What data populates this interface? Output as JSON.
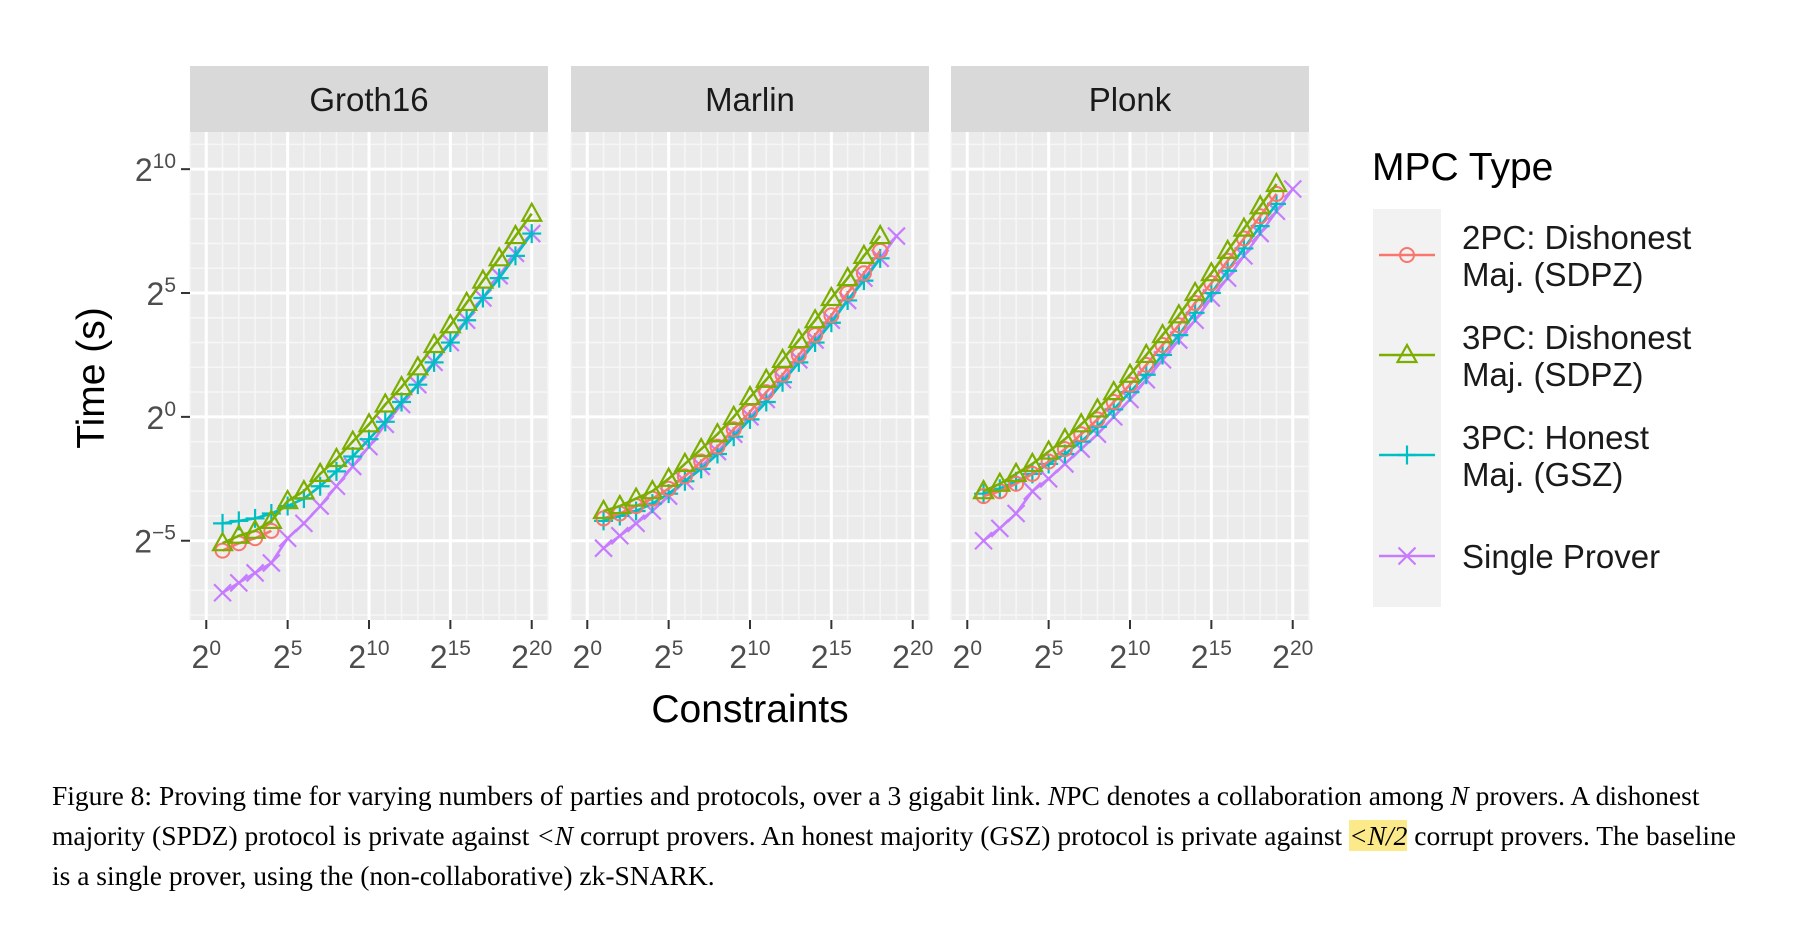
{
  "chart_data": {
    "type": "line",
    "scale": {
      "x": "log2",
      "y": "log2"
    },
    "xlabel": "Constraints",
    "ylabel": "Time (s)",
    "xticks": [
      0,
      5,
      10,
      15,
      20
    ],
    "yticks": [
      -5,
      0,
      5,
      10
    ],
    "xlim_log2": [
      -1,
      21
    ],
    "ylim_log2": [
      -8.2,
      11.5
    ],
    "grid": true,
    "legend": {
      "title": "MPC Type",
      "placement": "right",
      "entries": [
        {
          "key": "2pc",
          "lines": [
            "2PC: Dishonest",
            "Maj. (SDPZ)"
          ],
          "color": "#f8766d",
          "marker": "circle"
        },
        {
          "key": "3pcd",
          "lines": [
            "3PC: Dishonest",
            "Maj. (SDPZ)"
          ],
          "color": "#7cae00",
          "marker": "triangle"
        },
        {
          "key": "3pch",
          "lines": [
            "3PC: Honest",
            "Maj. (GSZ)"
          ],
          "color": "#00bfc4",
          "marker": "plus"
        },
        {
          "key": "single",
          "lines": [
            "Single Prover"
          ],
          "color": "#c77cff",
          "marker": "cross"
        }
      ]
    },
    "facets": [
      {
        "title": "Groth16",
        "series": [
          {
            "key": "2pc",
            "x_log2": [
              1,
              2,
              3,
              4
            ],
            "y_log2": [
              -5.4,
              -5.1,
              -4.9,
              -4.6
            ]
          },
          {
            "key": "3pcd",
            "x_log2": [
              1,
              2,
              3,
              4,
              5,
              6,
              7,
              8,
              9,
              10,
              11,
              12,
              13,
              14,
              15,
              16,
              17,
              18,
              19,
              20
            ],
            "y_log2": [
              -5.1,
              -4.8,
              -4.6,
              -4.2,
              -3.4,
              -3.0,
              -2.3,
              -1.7,
              -1.0,
              -0.3,
              0.5,
              1.2,
              2.0,
              2.9,
              3.7,
              4.6,
              5.5,
              6.4,
              7.3,
              8.2
            ]
          },
          {
            "key": "3pch",
            "x_log2": [
              1,
              2,
              3,
              4,
              5,
              6,
              7,
              8,
              9,
              10,
              11,
              12,
              13,
              14,
              15,
              16,
              17,
              18,
              19,
              20
            ],
            "y_log2": [
              -4.3,
              -4.2,
              -4.1,
              -3.9,
              -3.6,
              -3.3,
              -2.8,
              -2.2,
              -1.6,
              -0.9,
              -0.2,
              0.6,
              1.3,
              2.2,
              3.0,
              3.9,
              4.8,
              5.6,
              6.5,
              7.4
            ]
          },
          {
            "key": "single",
            "x_log2": [
              1,
              2,
              3,
              4,
              5,
              6,
              7,
              8,
              9,
              10,
              11,
              12,
              13,
              14,
              15,
              16,
              17,
              18,
              19,
              20
            ],
            "y_log2": [
              -7.1,
              -6.7,
              -6.3,
              -5.9,
              -4.9,
              -4.3,
              -3.6,
              -2.8,
              -2.0,
              -1.2,
              -0.3,
              0.5,
              1.3,
              2.2,
              3.0,
              3.9,
              4.8,
              5.7,
              6.6,
              7.4
            ]
          }
        ]
      },
      {
        "title": "Marlin",
        "series": [
          {
            "key": "2pc",
            "x_log2": [
              1,
              2,
              3,
              4,
              5,
              6,
              7,
              8,
              9,
              10,
              11,
              12,
              13,
              14,
              15,
              16,
              17,
              18
            ],
            "y_log2": [
              -4.1,
              -3.9,
              -3.6,
              -3.3,
              -2.9,
              -2.4,
              -1.8,
              -1.2,
              -0.5,
              0.2,
              1.0,
              1.7,
              2.5,
              3.3,
              4.1,
              5.0,
              5.8,
              6.7
            ]
          },
          {
            "key": "3pcd",
            "x_log2": [
              1,
              2,
              3,
              4,
              5,
              6,
              7,
              8,
              9,
              10,
              11,
              12,
              13,
              14,
              15,
              16,
              17,
              18
            ],
            "y_log2": [
              -3.8,
              -3.6,
              -3.3,
              -3.0,
              -2.5,
              -1.9,
              -1.3,
              -0.7,
              0.0,
              0.8,
              1.5,
              2.3,
              3.1,
              3.9,
              4.8,
              5.6,
              6.5,
              7.3
            ]
          },
          {
            "key": "3pch",
            "x_log2": [
              1,
              2,
              3,
              4,
              5,
              6,
              7,
              8,
              9,
              10,
              11,
              12,
              13,
              14,
              15,
              16,
              17,
              18
            ],
            "y_log2": [
              -4.2,
              -4.0,
              -3.8,
              -3.5,
              -3.1,
              -2.6,
              -2.1,
              -1.5,
              -0.8,
              -0.1,
              0.6,
              1.4,
              2.2,
              3.0,
              3.8,
              4.7,
              5.5,
              6.4
            ]
          },
          {
            "key": "single",
            "x_log2": [
              1,
              2,
              3,
              4,
              5,
              6,
              7,
              8,
              9,
              10,
              11,
              12,
              13,
              14,
              15,
              16,
              17,
              18,
              19
            ],
            "y_log2": [
              -5.3,
              -4.8,
              -4.3,
              -3.8,
              -3.2,
              -2.6,
              -2.0,
              -1.4,
              -0.7,
              0.0,
              0.7,
              1.5,
              2.3,
              3.1,
              3.9,
              4.7,
              5.6,
              6.4,
              7.3
            ]
          }
        ]
      },
      {
        "title": "Plonk",
        "series": [
          {
            "key": "2pc",
            "x_log2": [
              1,
              2,
              3,
              4,
              5,
              6,
              7,
              8,
              9,
              10,
              11,
              12,
              13,
              14,
              15,
              16,
              17,
              18,
              19
            ],
            "y_log2": [
              -3.2,
              -3.0,
              -2.7,
              -2.3,
              -1.8,
              -1.3,
              -0.7,
              -0.1,
              0.6,
              1.3,
              2.1,
              2.9,
              3.7,
              4.6,
              5.4,
              6.3,
              7.2,
              8.1,
              9.0
            ]
          },
          {
            "key": "3pcd",
            "x_log2": [
              1,
              2,
              3,
              4,
              5,
              6,
              7,
              8,
              9,
              10,
              11,
              12,
              13,
              14,
              15,
              16,
              17,
              18,
              19
            ],
            "y_log2": [
              -3.0,
              -2.7,
              -2.3,
              -1.9,
              -1.4,
              -0.9,
              -0.3,
              0.3,
              1.0,
              1.7,
              2.5,
              3.3,
              4.1,
              5.0,
              5.8,
              6.7,
              7.6,
              8.5,
              9.4
            ]
          },
          {
            "key": "3pch",
            "x_log2": [
              1,
              2,
              3,
              4,
              5,
              6,
              7,
              8,
              9,
              10,
              11,
              12,
              13,
              14,
              15,
              16,
              17,
              18,
              19
            ],
            "y_log2": [
              -3.1,
              -2.9,
              -2.6,
              -2.3,
              -1.9,
              -1.5,
              -1.0,
              -0.4,
              0.3,
              1.0,
              1.7,
              2.5,
              3.3,
              4.2,
              5.0,
              5.9,
              6.8,
              7.7,
              8.6
            ]
          },
          {
            "key": "single",
            "x_log2": [
              1,
              2,
              3,
              4,
              5,
              6,
              7,
              8,
              9,
              10,
              11,
              12,
              13,
              14,
              15,
              16,
              17,
              18,
              19,
              20
            ],
            "y_log2": [
              -5.0,
              -4.5,
              -3.9,
              -3.0,
              -2.5,
              -1.9,
              -1.3,
              -0.7,
              0.0,
              0.7,
              1.5,
              2.3,
              3.1,
              3.9,
              4.8,
              5.6,
              6.5,
              7.4,
              8.3,
              9.2
            ]
          }
        ]
      }
    ]
  },
  "caption": {
    "p1": "Figure 8: Proving time for varying numbers of parties and protocols, over a 3 gigabit link. ",
    "n1": "N",
    "p2": "PC denotes a collaboration among ",
    "n2": "N",
    "p3": " provers. A dishonest majority (SPDZ) protocol is private against ",
    "lt1": "<N",
    "p4": " corrupt provers. An honest majority (GSZ) protocol is private against ",
    "lt2": "<N/2",
    "p5": " corrupt provers. The baseline is a single prover, using the (non-collaborative) zk-SNARK."
  }
}
